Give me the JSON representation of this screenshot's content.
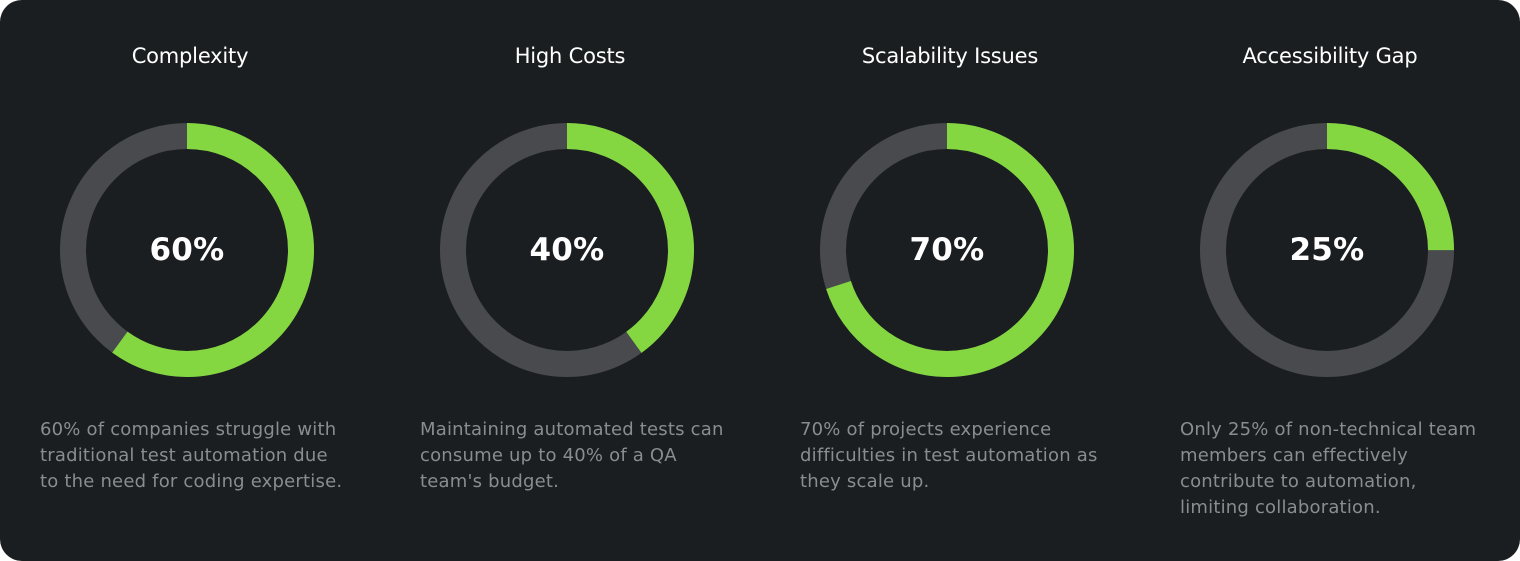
{
  "colors": {
    "background": "#1b1e20",
    "filled": "#84d740",
    "track": "#484a4d",
    "title_text": "#ffffff",
    "description_text": "#8a8d90"
  },
  "chart_data": [
    {
      "type": "pie",
      "title": "Complexity",
      "values": [
        60,
        40
      ],
      "center_label": "60%",
      "description": "60% of companies struggle with traditional test automation due to the need for coding expertise."
    },
    {
      "type": "pie",
      "title": "High Costs",
      "values": [
        40,
        60
      ],
      "center_label": "40%",
      "description": "Maintaining automated tests can consume up to 40% of a QA team's budget."
    },
    {
      "type": "pie",
      "title": "Scalability Issues",
      "values": [
        70,
        30
      ],
      "center_label": "70%",
      "description": "70% of projects experience difficulties in test automation as they scale up."
    },
    {
      "type": "pie",
      "title": "Accessibility Gap",
      "values": [
        25,
        75
      ],
      "center_label": "25%",
      "description": "Only 25% of non-technical team members can effectively contribute to automation, limiting collaboration."
    }
  ]
}
